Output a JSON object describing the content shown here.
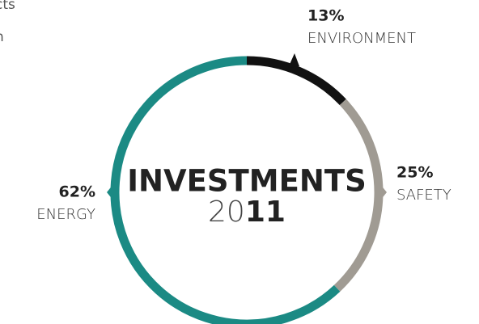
{
  "fragments": [
    "cts",
    "n"
  ],
  "chart_data": {
    "type": "donut",
    "title": "INVESTMENTS",
    "year_light": "20",
    "year_bold": "11",
    "categories": [
      "ENVIRONMENT",
      "SAFETY",
      "ENERGY"
    ],
    "values": [
      13,
      25,
      62
    ],
    "value_labels": [
      "13%",
      "25%",
      "62%"
    ],
    "colors": [
      "#111111",
      "#a09b93",
      "#1b8a84"
    ]
  }
}
